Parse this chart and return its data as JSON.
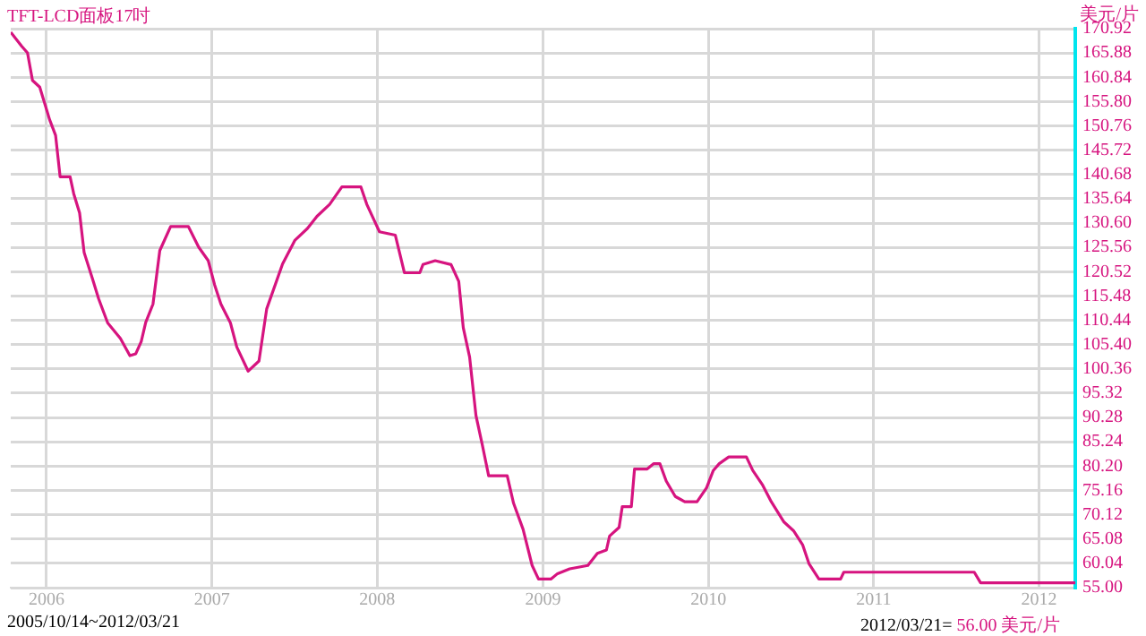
{
  "chart_data": {
    "type": "line",
    "title": "TFT-LCD面板17吋",
    "ylabel": "美元/片",
    "annotations": [
      "2005/10/14~2012/03/21",
      "2012/03/21=",
      "56.00 美元/片"
    ],
    "xlim": [
      "2005-10-14",
      "2012-03-21"
    ],
    "xticks": [
      "2006",
      "2007",
      "2008",
      "2009",
      "2010",
      "2011",
      "2012"
    ],
    "ylim": [
      55,
      170.92
    ],
    "yticks": [
      {
        "value": 55,
        "label": "55.00"
      },
      {
        "value": 60.04,
        "label": "60.04"
      },
      {
        "value": 65.08,
        "label": "65.08"
      },
      {
        "value": 70.12,
        "label": "70.12"
      },
      {
        "value": 75.16,
        "label": "75.16"
      },
      {
        "value": 80.2,
        "label": "80.20"
      },
      {
        "value": 85.24,
        "label": "85.24"
      },
      {
        "value": 90.28,
        "label": "90.28"
      },
      {
        "value": 95.32,
        "label": "95.32"
      },
      {
        "value": 100.36,
        "label": "100.36"
      },
      {
        "value": 105.4,
        "label": "105.40"
      },
      {
        "value": 110.44,
        "label": "110.44"
      },
      {
        "value": 115.48,
        "label": "115.48"
      },
      {
        "value": 120.52,
        "label": "120.52"
      },
      {
        "value": 125.56,
        "label": "125.56"
      },
      {
        "value": 130.6,
        "label": "130.60"
      },
      {
        "value": 135.64,
        "label": "135.64"
      },
      {
        "value": 140.68,
        "label": "140.68"
      },
      {
        "value": 145.72,
        "label": "145.72"
      },
      {
        "value": 150.76,
        "label": "150.76"
      },
      {
        "value": 155.8,
        "label": "155.80"
      },
      {
        "value": 160.84,
        "label": "160.84"
      },
      {
        "value": 165.88,
        "label": "165.88"
      },
      {
        "value": 170.92,
        "label": "170.92"
      }
    ],
    "grid": true,
    "legend": false,
    "marker": "none",
    "line_style": "solid",
    "x": [
      "2005-10-14",
      "2005-11-07",
      "2005-11-20",
      "2005-12-01",
      "2005-12-17",
      "2006-01-08",
      "2006-01-21",
      "2006-01-31",
      "2006-02-22",
      "2006-03-02",
      "2006-03-15",
      "2006-03-25",
      "2006-04-12",
      "2006-04-26",
      "2006-05-16",
      "2006-06-13",
      "2006-07-04",
      "2006-07-17",
      "2006-07-29",
      "2006-08-08",
      "2006-08-24",
      "2006-09-08",
      "2006-10-02",
      "2006-11-10",
      "2006-12-03",
      "2006-12-24",
      "2007-01-07",
      "2007-01-21",
      "2007-02-11",
      "2007-02-25",
      "2007-03-22",
      "2007-04-15",
      "2007-05-02",
      "2007-06-06",
      "2007-07-03",
      "2007-07-31",
      "2007-08-21",
      "2007-09-18",
      "2007-10-15",
      "2007-11-26",
      "2007-12-09",
      "2008-01-06",
      "2008-02-10",
      "2008-03-01",
      "2008-04-04",
      "2008-04-11",
      "2008-05-08",
      "2008-06-12",
      "2008-06-29",
      "2008-07-09",
      "2008-07-23",
      "2008-08-06",
      "2008-08-20",
      "2008-09-03",
      "2008-10-14",
      "2008-10-28",
      "2008-11-18",
      "2008-12-08",
      "2008-12-22",
      "2009-01-19",
      "2009-02-02",
      "2009-03-01",
      "2009-04-10",
      "2009-05-01",
      "2009-05-21",
      "2009-05-28",
      "2009-06-18",
      "2009-06-25",
      "2009-07-15",
      "2009-07-22",
      "2009-08-19",
      "2009-09-02",
      "2009-09-16",
      "2009-09-30",
      "2009-10-20",
      "2009-11-10",
      "2009-12-07",
      "2009-12-28",
      "2010-01-12",
      "2010-01-25",
      "2010-02-15",
      "2010-03-26",
      "2010-04-09",
      "2010-04-30",
      "2010-05-20",
      "2010-06-17",
      "2010-07-08",
      "2010-07-28",
      "2010-08-11",
      "2010-09-02",
      "2010-10-20",
      "2010-10-27",
      "2011-08-11",
      "2011-08-25",
      "2012-03-21"
    ],
    "series": [
      {
        "color": "#d6147f",
        "values": [
          170.2,
          167.3,
          165.9,
          160.2,
          158.8,
          152,
          148.8,
          140.2,
          140.2,
          136.7,
          132.7,
          124.5,
          119.2,
          114.9,
          109.9,
          106.7,
          103.1,
          103.5,
          106,
          110,
          113.8,
          124.9,
          129.9,
          129.9,
          125.6,
          122.8,
          117.8,
          113.8,
          109.9,
          104.9,
          99.9,
          102,
          112.8,
          122.1,
          127,
          129.5,
          132,
          134.5,
          138.1,
          138.1,
          134.5,
          128.8,
          128.1,
          120.3,
          120.3,
          122,
          122.8,
          122,
          118.5,
          108.9,
          102.8,
          90.7,
          84.6,
          78.2,
          78.2,
          72.5,
          67.1,
          59.6,
          56.8,
          56.8,
          57.9,
          58.9,
          59.6,
          62.1,
          62.8,
          65.7,
          67.5,
          71.8,
          71.8,
          79.6,
          79.6,
          80.7,
          80.7,
          77.1,
          73.9,
          72.8,
          72.8,
          75.7,
          79.3,
          80.7,
          82.1,
          82.1,
          79.3,
          76.4,
          72.8,
          68.6,
          66.8,
          63.9,
          60,
          56.8,
          56.8,
          58.2,
          58.2,
          56,
          56
        ]
      }
    ]
  }
}
